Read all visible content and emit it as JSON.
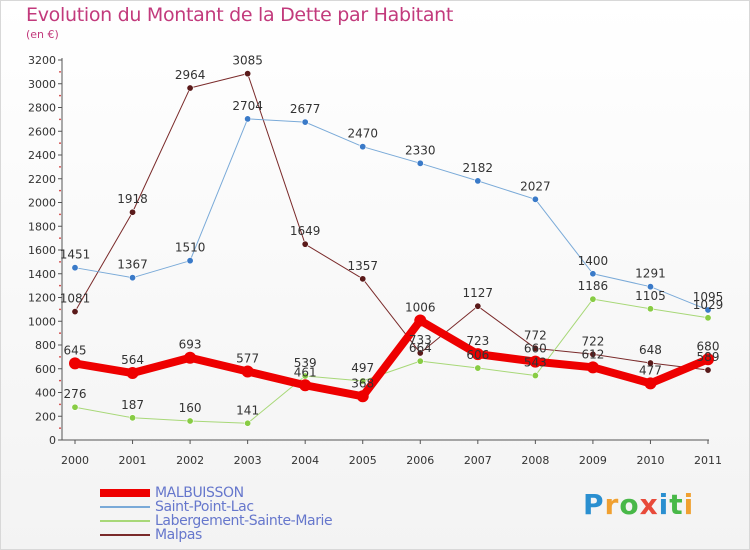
{
  "header": {
    "title": "Evolution du Montant de la Dette par Habitant",
    "subtitle": "(en €)"
  },
  "logo": {
    "letters": [
      "P",
      "r",
      "o",
      "x",
      "i",
      "t",
      "i"
    ],
    "colors": [
      "#2a8fd0",
      "#f0a030",
      "#48b848",
      "#e84a3a",
      "#2a8fd0",
      "#48b848",
      "#f0a030"
    ]
  },
  "chart_data": {
    "type": "line",
    "x": [
      "2000",
      "2001",
      "2002",
      "2003",
      "2004",
      "2005",
      "2006",
      "2007",
      "2008",
      "2009",
      "2010",
      "2011"
    ],
    "ylim": [
      0,
      3200
    ],
    "yticks": [
      0,
      200,
      400,
      600,
      800,
      1000,
      1200,
      1400,
      1600,
      1800,
      2000,
      2200,
      2400,
      2600,
      2800,
      3000,
      3200
    ],
    "grid": false,
    "legend": "bottom-left",
    "series": [
      {
        "name": "Malpas",
        "color": "#7a2a2a",
        "dot": "#5a1a1a",
        "width": 1,
        "values": [
          1081,
          1918,
          2964,
          3085,
          1649,
          1357,
          733,
          1127,
          772,
          722,
          648,
          589
        ],
        "labels": [
          "1081",
          "1918",
          "2964",
          "3085",
          "1649",
          "1357",
          "733",
          "1127",
          "772",
          "722",
          "648",
          "589"
        ]
      },
      {
        "name": "Saint-Point-Lac",
        "color": "#7aaad8",
        "dot": "#3a7ac8",
        "width": 1,
        "values": [
          1451,
          1367,
          1510,
          2704,
          2677,
          2470,
          2330,
          2182,
          2027,
          1400,
          1291,
          1095
        ],
        "labels": [
          "1451",
          "1367",
          "1510",
          "2704",
          "2677",
          "2470",
          "2330",
          "2182",
          "2027",
          "1400",
          "1291",
          "1095"
        ]
      },
      {
        "name": "Labergement-Sainte-Marie",
        "color": "#a8d878",
        "dot": "#88cc44",
        "width": 1,
        "values": [
          276,
          187,
          160,
          141,
          539,
          497,
          664,
          606,
          543,
          1186,
          1105,
          1029
        ],
        "labels": [
          "276",
          "187",
          "160",
          "141",
          "539",
          "497",
          "664",
          "606",
          "543",
          "1186",
          "1105",
          "1029"
        ]
      },
      {
        "name": "MALBUISSON",
        "color": "#ee0000",
        "dot": "#ee0000",
        "width": 8,
        "values": [
          645,
          564,
          693,
          577,
          461,
          368,
          1006,
          723,
          660,
          612,
          477,
          680
        ],
        "labels": [
          "645",
          "564",
          "693",
          "577",
          "461",
          "368",
          "1006",
          "723",
          "660",
          "612",
          "477",
          "680"
        ]
      }
    ]
  }
}
